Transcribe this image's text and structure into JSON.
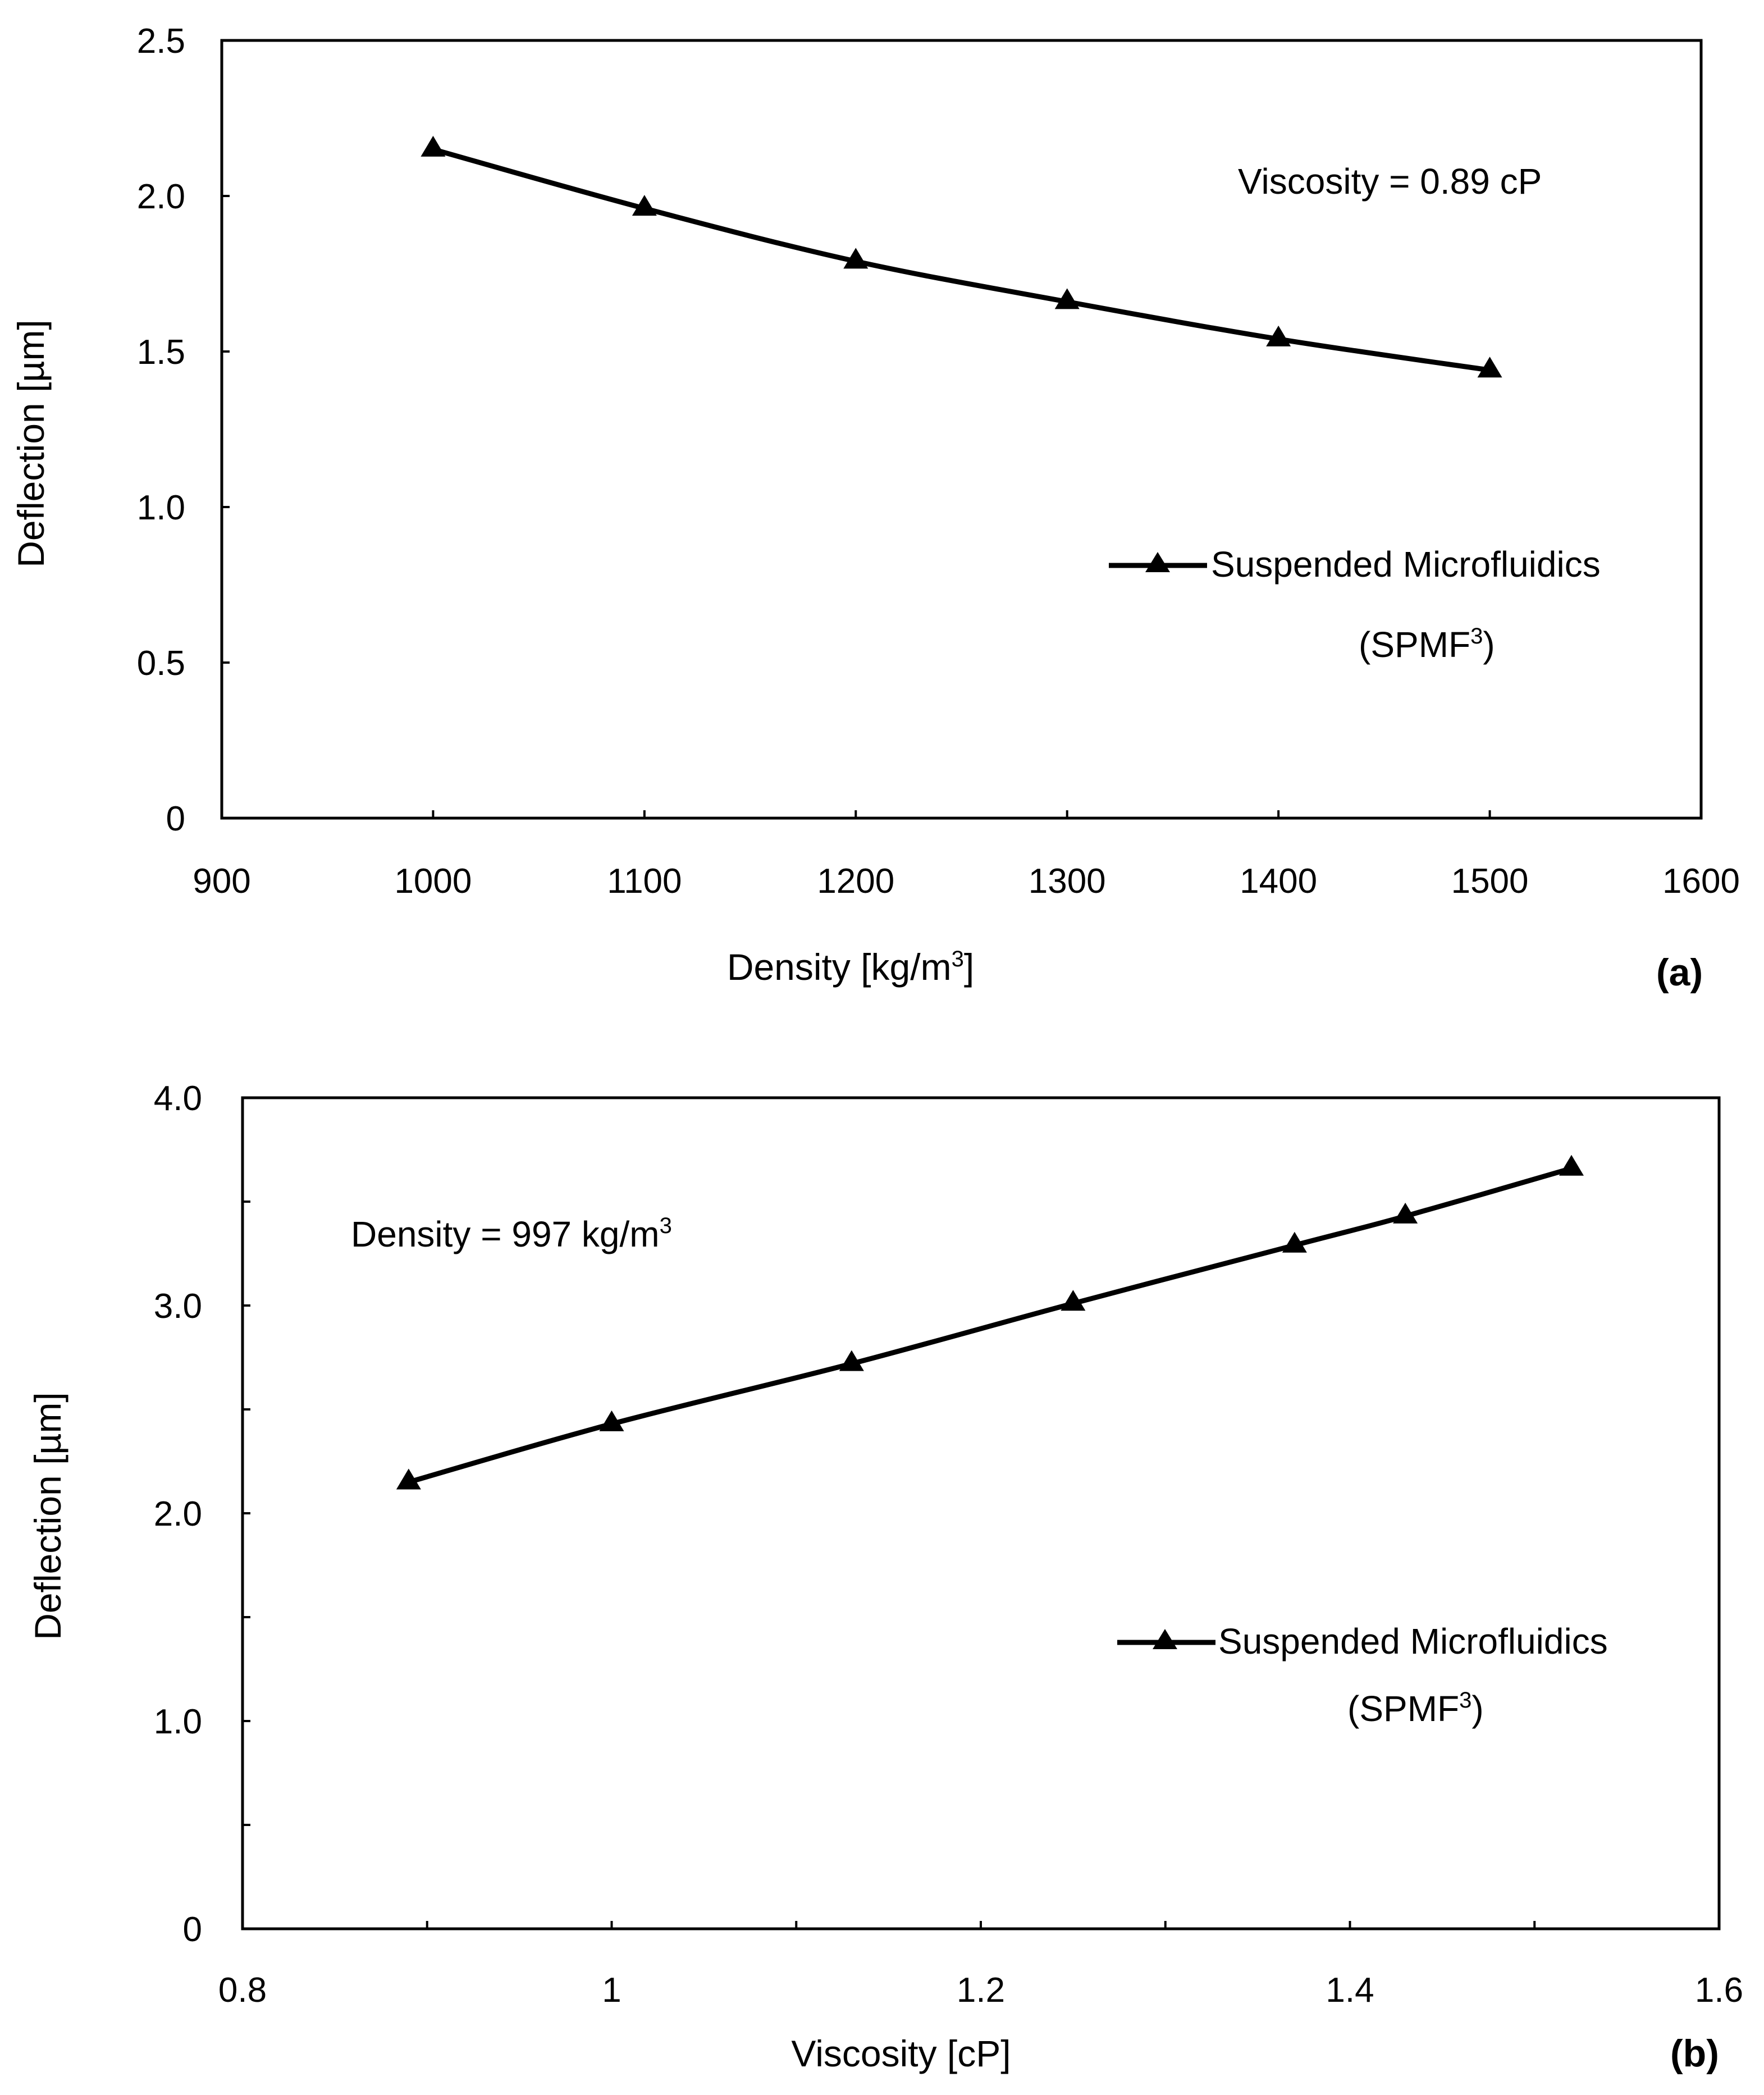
{
  "chart_data": [
    {
      "type": "line",
      "panel_label": "a",
      "panel_label_open": "(",
      "panel_label_close": ")",
      "x": [
        1000,
        1100,
        1200,
        1300,
        1400,
        1500
      ],
      "series": [
        {
          "name": "Suspended Microfluidics (SPMF³)",
          "values": [
            2.15,
            1.96,
            1.79,
            1.66,
            1.54,
            1.44
          ]
        }
      ],
      "xlabel_text": "Density [kg/m",
      "xlabel_sup": "3",
      "xlabel_end": "]",
      "ylabel": "Deflection [µm]",
      "xlim": [
        900,
        1600
      ],
      "ylim": [
        0,
        2.5
      ],
      "x_ticks": [
        900,
        1000,
        1100,
        1200,
        1300,
        1400,
        1500,
        1600
      ],
      "x_tick_labels": [
        "900",
        "1000",
        "1100",
        "1200",
        "1300",
        "1400",
        "1500",
        "1600"
      ],
      "y_ticks": [
        0,
        0.5,
        1.0,
        1.5,
        2.0,
        2.5
      ],
      "y_tick_labels": [
        "0",
        "0.5",
        "1.0",
        "1.5",
        "2.0",
        "2.5"
      ],
      "annotation": {
        "text": "Viscosity = 0.89 cP",
        "sup": "",
        "position": "top-right"
      },
      "legend": {
        "line1": "Suspended Microfluidics",
        "line2_text": "(SPMF",
        "line2_sup": "3",
        "line2_end": ")",
        "position": "right"
      },
      "marker": "triangle",
      "grid": false
    },
    {
      "type": "line",
      "panel_label": "b",
      "panel_label_open": "(",
      "panel_label_close": ")",
      "x": [
        0.89,
        1.0,
        1.13,
        1.25,
        1.37,
        1.43,
        1.52
      ],
      "series": [
        {
          "name": "Suspended Microfluidics (SPMF³)",
          "values": [
            2.15,
            2.43,
            2.72,
            3.01,
            3.29,
            3.43,
            3.66
          ]
        }
      ],
      "xlabel_text": "Viscosity [cP]",
      "xlabel_sup": "",
      "xlabel_end": "",
      "ylabel": "Deflection [µm]",
      "xlim": [
        0.8,
        1.6
      ],
      "ylim": [
        0,
        4.0
      ],
      "x_ticks": [
        0.8,
        1.0,
        1.2,
        1.4,
        1.6
      ],
      "x_tick_labels": [
        "0.8",
        "1",
        "1.2",
        "1.4",
        "1.6"
      ],
      "x_minor_ticks": [
        0.9,
        1.1,
        1.3,
        1.5
      ],
      "y_ticks": [
        0,
        1.0,
        2.0,
        3.0,
        4.0
      ],
      "y_tick_labels": [
        "0",
        "1.0",
        "2.0",
        "3.0",
        "4.0"
      ],
      "y_minor_ticks": [
        0.5,
        1.5,
        2.5,
        3.5
      ],
      "annotation": {
        "text": "Density = 997 kg/m",
        "sup": "3",
        "position": "top-left"
      },
      "legend": {
        "line1": "Suspended Microfluidics",
        "line2_text": "(SPMF",
        "line2_sup": "3",
        "line2_end": ")",
        "position": "right"
      },
      "marker": "triangle",
      "grid": false
    }
  ]
}
